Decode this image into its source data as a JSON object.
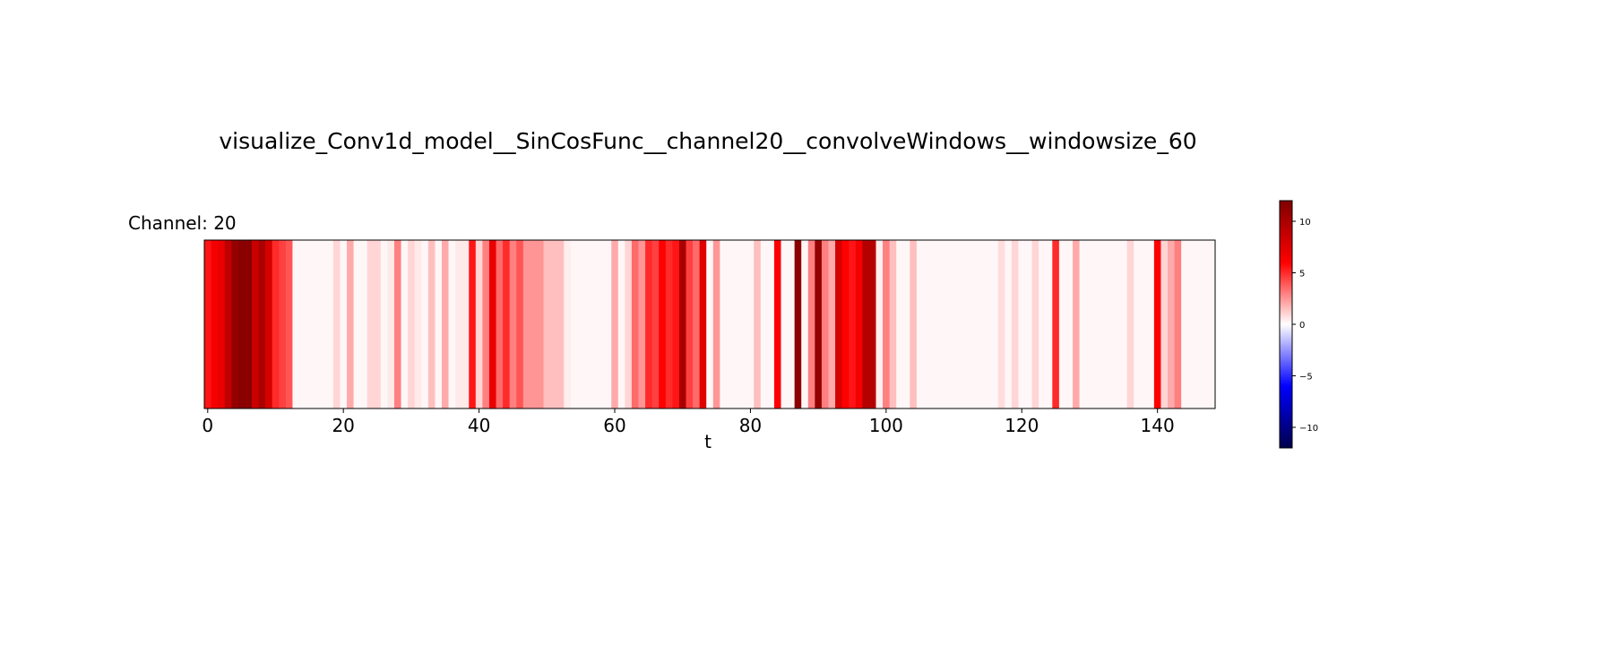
{
  "chart_data": {
    "type": "heatmap",
    "title": "visualize_Conv1d_model__SinCosFunc__channel20__convolveWindows__windowsize_60",
    "subplot_title": "Channel: 20",
    "xlabel": "t",
    "ylabel": "",
    "xlim": [
      0,
      149
    ],
    "xticks": [
      0,
      20,
      40,
      60,
      80,
      100,
      120,
      140
    ],
    "yticks_visible": false,
    "grid": false,
    "colormap": "seismic",
    "colorbar": {
      "range": [
        -12,
        12
      ],
      "ticks": [
        10,
        5,
        0,
        -5,
        -10
      ],
      "tick_labels": [
        "10",
        "5",
        "0",
        "−5",
        "−10"
      ]
    },
    "values": [
      5.5,
      6.5,
      7.0,
      9.0,
      11.0,
      11.5,
      11.5,
      8.5,
      10.0,
      8.0,
      5.0,
      4.5,
      4.0,
      0.2,
      0.2,
      0.2,
      0.2,
      0.2,
      0.2,
      1.0,
      0.2,
      2.0,
      0.2,
      0.2,
      1.0,
      1.0,
      0.2,
      0.5,
      3.0,
      0.2,
      1.0,
      0.5,
      0.2,
      1.5,
      0.2,
      2.0,
      0.2,
      0.5,
      0.5,
      5.5,
      1.0,
      3.0,
      7.0,
      3.5,
      5.0,
      3.0,
      4.0,
      2.5,
      2.5,
      2.5,
      1.5,
      1.5,
      1.5,
      0.4,
      0.2,
      0.2,
      0.2,
      0.2,
      0.2,
      0.2,
      2.0,
      0.2,
      1.0,
      3.5,
      2.5,
      5.0,
      4.5,
      6.0,
      5.0,
      5.5,
      10.0,
      4.5,
      3.5,
      7.5,
      0.2,
      2.5,
      0.2,
      0.2,
      0.2,
      0.2,
      0.2,
      1.5,
      0.2,
      0.2,
      6.0,
      0.2,
      0.2,
      11.5,
      0.2,
      3.0,
      11.0,
      3.0,
      2.0,
      8.0,
      6.0,
      5.5,
      6.5,
      9.5,
      9.5,
      0.4,
      3.0,
      1.5,
      0.2,
      0.2,
      1.5,
      0.2,
      0.2,
      0.2,
      0.2,
      0.2,
      0.2,
      0.2,
      0.2,
      0.2,
      0.2,
      0.2,
      0.2,
      0.8,
      0.2,
      1.0,
      0.2,
      0.2,
      1.0,
      0.2,
      0.2,
      5.0,
      0.2,
      0.2,
      2.0,
      0.2,
      0.2,
      0.2,
      0.2,
      0.2,
      0.2,
      0.2,
      1.0,
      0.2,
      0.2,
      0.2,
      6.0,
      1.0,
      2.0,
      3.0,
      0.2,
      0.2,
      0.2,
      0.2,
      0.2
    ]
  }
}
